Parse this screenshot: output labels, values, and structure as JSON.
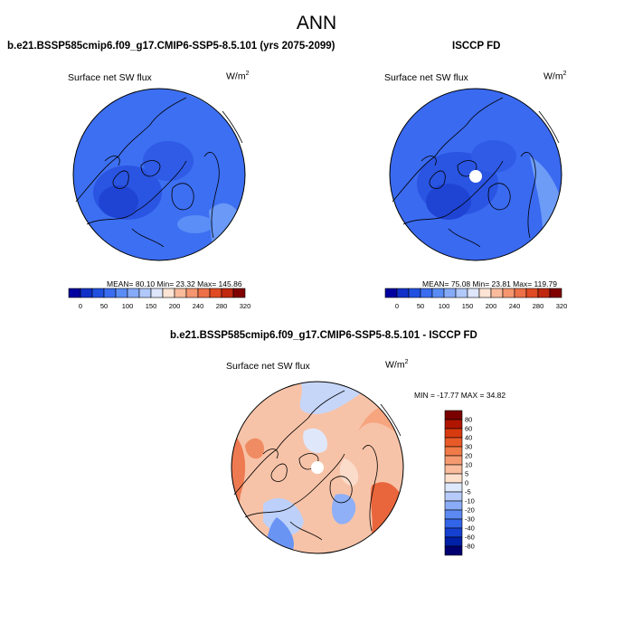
{
  "figure_title": "ANN",
  "panel_left": {
    "title": "b.e21.BSSP585cmip6.f09_g17.CMIP6-SSP5-8.5.101 (yrs 2075-2099)",
    "variable": "Surface net SW flux",
    "units_base": "W/m",
    "units_sup": "2",
    "stats": "MEAN=  80.10  Min=  23.32  Max= 145.86"
  },
  "panel_right": {
    "title": "ISCCP FD",
    "variable": "Surface net SW flux",
    "units_base": "W/m",
    "units_sup": "2",
    "stats": "MEAN=  75.08  Min=  23.81  Max= 119.79"
  },
  "panel_diff": {
    "title": "b.e21.BSSP585cmip6.f09_g17.CMIP6-SSP5-8.5.101 - ISCCP FD",
    "variable": "Surface net SW flux",
    "units_base": "W/m",
    "units_sup": "2",
    "stats": "MIN = -17.77 MAX =  34.82"
  },
  "colorbar_main": {
    "colors": [
      "#0000a0",
      "#1030c8",
      "#2050e0",
      "#3a6cf0",
      "#5a8cf6",
      "#85aaf8",
      "#b0c8fa",
      "#dde6fa",
      "#fde4d4",
      "#f9bb9c",
      "#f59670",
      "#ee7048",
      "#e04a24",
      "#c02810",
      "#800000"
    ],
    "tick_labels": [
      "0",
      "50",
      "100",
      "150",
      "200",
      "240",
      "280",
      "320"
    ],
    "tick_positions": [
      1,
      3,
      5,
      7,
      9,
      11,
      13,
      15
    ]
  },
  "colorbar_diff": {
    "colors": [
      "#7a0000",
      "#b01500",
      "#d83a10",
      "#e85a28",
      "#f07a48",
      "#f59a70",
      "#f9bc9c",
      "#fde0cc",
      "#dde8fb",
      "#b6cbf9",
      "#8aabf6",
      "#5c8af2",
      "#3264e8",
      "#1540d0",
      "#0020a8",
      "#000070"
    ],
    "tick_labels": [
      "80",
      "60",
      "40",
      "30",
      "20",
      "10",
      "5",
      "0",
      "-5",
      "-10",
      "-20",
      "-30",
      "-40",
      "-60",
      "-80"
    ]
  }
}
